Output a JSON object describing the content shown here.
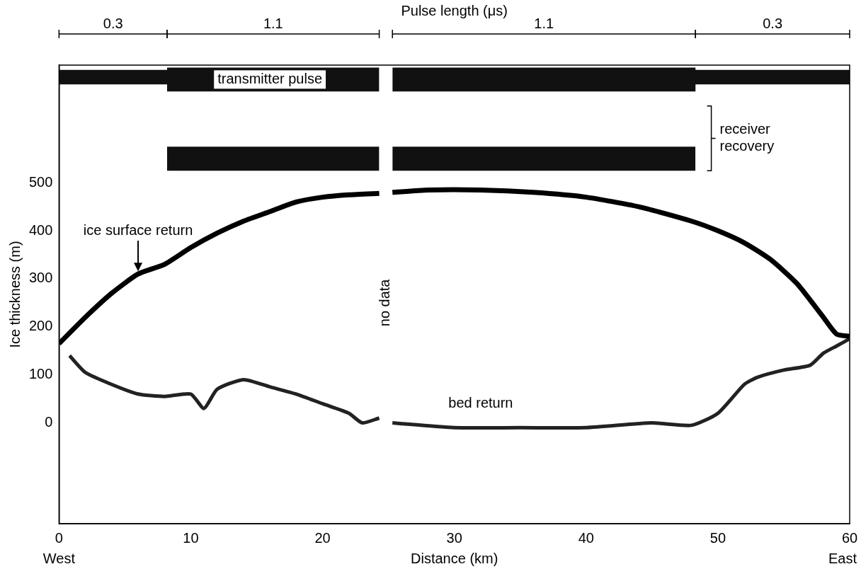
{
  "chart_data": {
    "type": "line",
    "x_label": "Distance (km)",
    "y_label": "Ice thickness (m)",
    "xlim": [
      0,
      60
    ],
    "xticks": [
      0,
      10,
      20,
      30,
      40,
      50,
      60
    ],
    "ylim": [
      -210,
      745
    ],
    "yticks": [
      0,
      100,
      200,
      300,
      400,
      500
    ],
    "grid": false,
    "axis_end_labels": [
      "West",
      "East"
    ],
    "top_axis": {
      "title": "Pulse length (μs)",
      "segments": [
        {
          "from": 0,
          "to": 8.2,
          "value": 0.3
        },
        {
          "from": 8.2,
          "to": 24.3,
          "value": 1.1
        },
        {
          "from": 25.3,
          "to": 48.3,
          "value": 1.1
        },
        {
          "from": 48.3,
          "to": 60,
          "value": 0.3
        }
      ]
    },
    "annotations": [
      {
        "text": "no data",
        "x": 24.8,
        "y": 250
      }
    ],
    "series": [
      {
        "name": "transmitter pulse",
        "type": "band",
        "color": "#111111",
        "x": [
          0,
          8.2,
          8.2,
          24.3,
          24.8,
          25.3,
          48.3,
          48.3,
          60
        ],
        "low": [
          705,
          705,
          690,
          690,
          null,
          690,
          690,
          705,
          705
        ],
        "high": [
          735,
          735,
          740,
          740,
          null,
          740,
          740,
          735,
          735
        ],
        "label_x": 16,
        "label_y": 715
      },
      {
        "name": "receiver recovery",
        "type": "band",
        "color": "#111111",
        "x": [
          8.2,
          24.3,
          24.8,
          25.3,
          48.3
        ],
        "low": [
          525,
          525,
          null,
          525,
          525
        ],
        "high": [
          575,
          575,
          null,
          575,
          575
        ],
        "label_x": 49.5,
        "label_y": 600
      },
      {
        "name": "ice surface return",
        "type": "line",
        "color": "#000000",
        "x": [
          0,
          2,
          4,
          6,
          8,
          10,
          12,
          14,
          16,
          18,
          20,
          22,
          24.3,
          24.8,
          25.3,
          28,
          32,
          36,
          40,
          44,
          48,
          50,
          52,
          54,
          56,
          58,
          59,
          60
        ],
        "values": [
          165,
          220,
          270,
          310,
          330,
          365,
          395,
          420,
          440,
          460,
          470,
          475,
          478,
          null,
          480,
          485,
          485,
          480,
          470,
          450,
          420,
          400,
          375,
          340,
          290,
          220,
          185,
          180
        ],
        "label_x": 6,
        "label_y": 400
      },
      {
        "name": "bed return",
        "type": "line",
        "color": "#222222",
        "x": [
          0.8,
          2,
          4,
          6,
          8,
          10,
          11,
          12,
          14,
          16,
          18,
          20,
          22,
          23,
          24.3,
          24.8,
          25.3,
          30,
          35,
          40,
          45,
          48,
          50,
          52,
          53,
          55,
          57,
          58,
          59,
          60
        ],
        "values": [
          140,
          105,
          80,
          60,
          55,
          60,
          30,
          70,
          90,
          75,
          60,
          40,
          20,
          0,
          10,
          null,
          0,
          -10,
          -10,
          -10,
          0,
          -5,
          20,
          80,
          95,
          110,
          120,
          145,
          160,
          175
        ],
        "label_x": 32,
        "label_y": 40
      }
    ]
  }
}
